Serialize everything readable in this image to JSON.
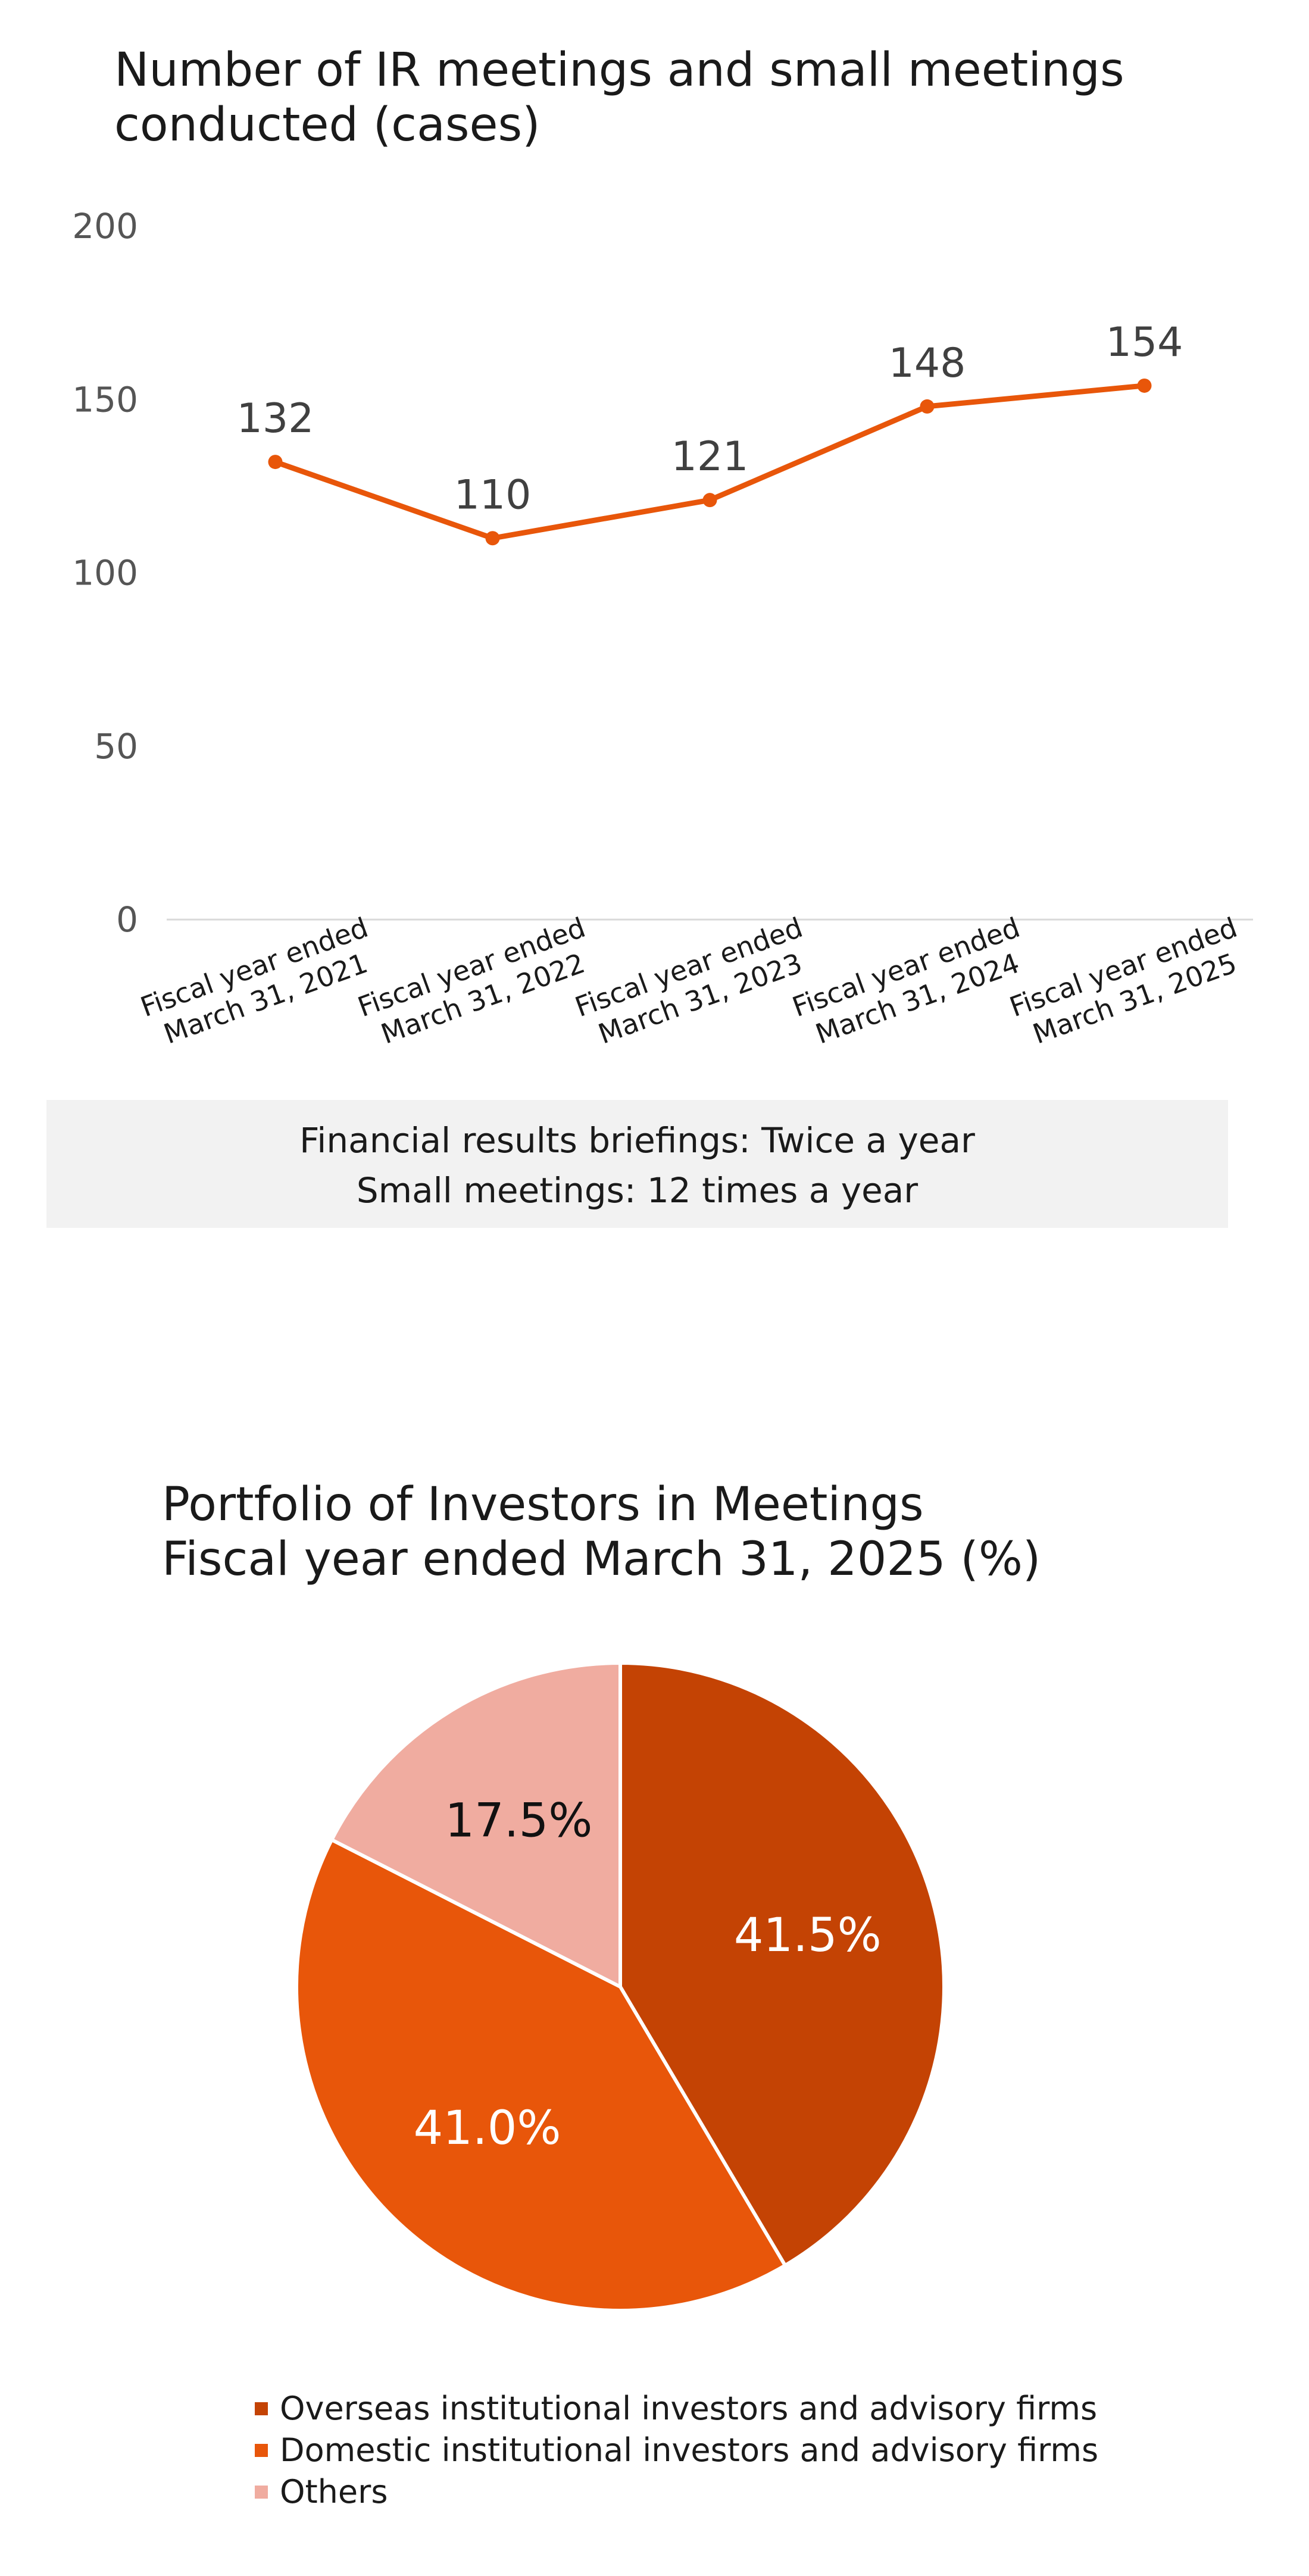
{
  "colors": {
    "line": "#E8560A",
    "axis": "#d9d9d9",
    "tick_text": "#555555",
    "data_label": "#404040"
  },
  "chart_data": [
    {
      "type": "line",
      "title": [
        "Number of IR meetings and small meetings",
        "conducted (cases)"
      ],
      "categories": [
        [
          "Fiscal year ended",
          "March 31, 2021"
        ],
        [
          "Fiscal year ended",
          "March 31, 2022"
        ],
        [
          "Fiscal year ended",
          "March 31, 2023"
        ],
        [
          "Fiscal year ended",
          "March 31, 2024"
        ],
        [
          "Fiscal year ended",
          "March 31, 2025"
        ]
      ],
      "values": [
        132,
        110,
        121,
        148,
        154
      ],
      "ylim": [
        0,
        200
      ],
      "yticks": [
        0,
        50,
        100,
        150,
        200
      ],
      "grid": false,
      "xlabel": "",
      "ylabel": ""
    },
    {
      "type": "pie",
      "title": [
        "Portfolio of Investors in Meetings",
        "Fiscal year ended March 31, 2025 (%)"
      ],
      "slices": [
        {
          "label": "Overseas institutional investors and advisory firms",
          "value": 41.5,
          "display": "41.5%",
          "color": "#C44304",
          "label_color": "#ffffff"
        },
        {
          "label": "Domestic institutional investors and advisory firms",
          "value": 41.0,
          "display": "41.0%",
          "color": "#E8560A",
          "label_color": "#ffffff"
        },
        {
          "label": "Others",
          "value": 17.5,
          "display": "17.5%",
          "color": "#F0ACA0",
          "label_color": "#111111"
        }
      ],
      "legend_position": "bottom"
    }
  ],
  "info_box": {
    "line1": "Financial results briefings: Twice a year",
    "line2": "Small meetings: 12 times a year"
  }
}
